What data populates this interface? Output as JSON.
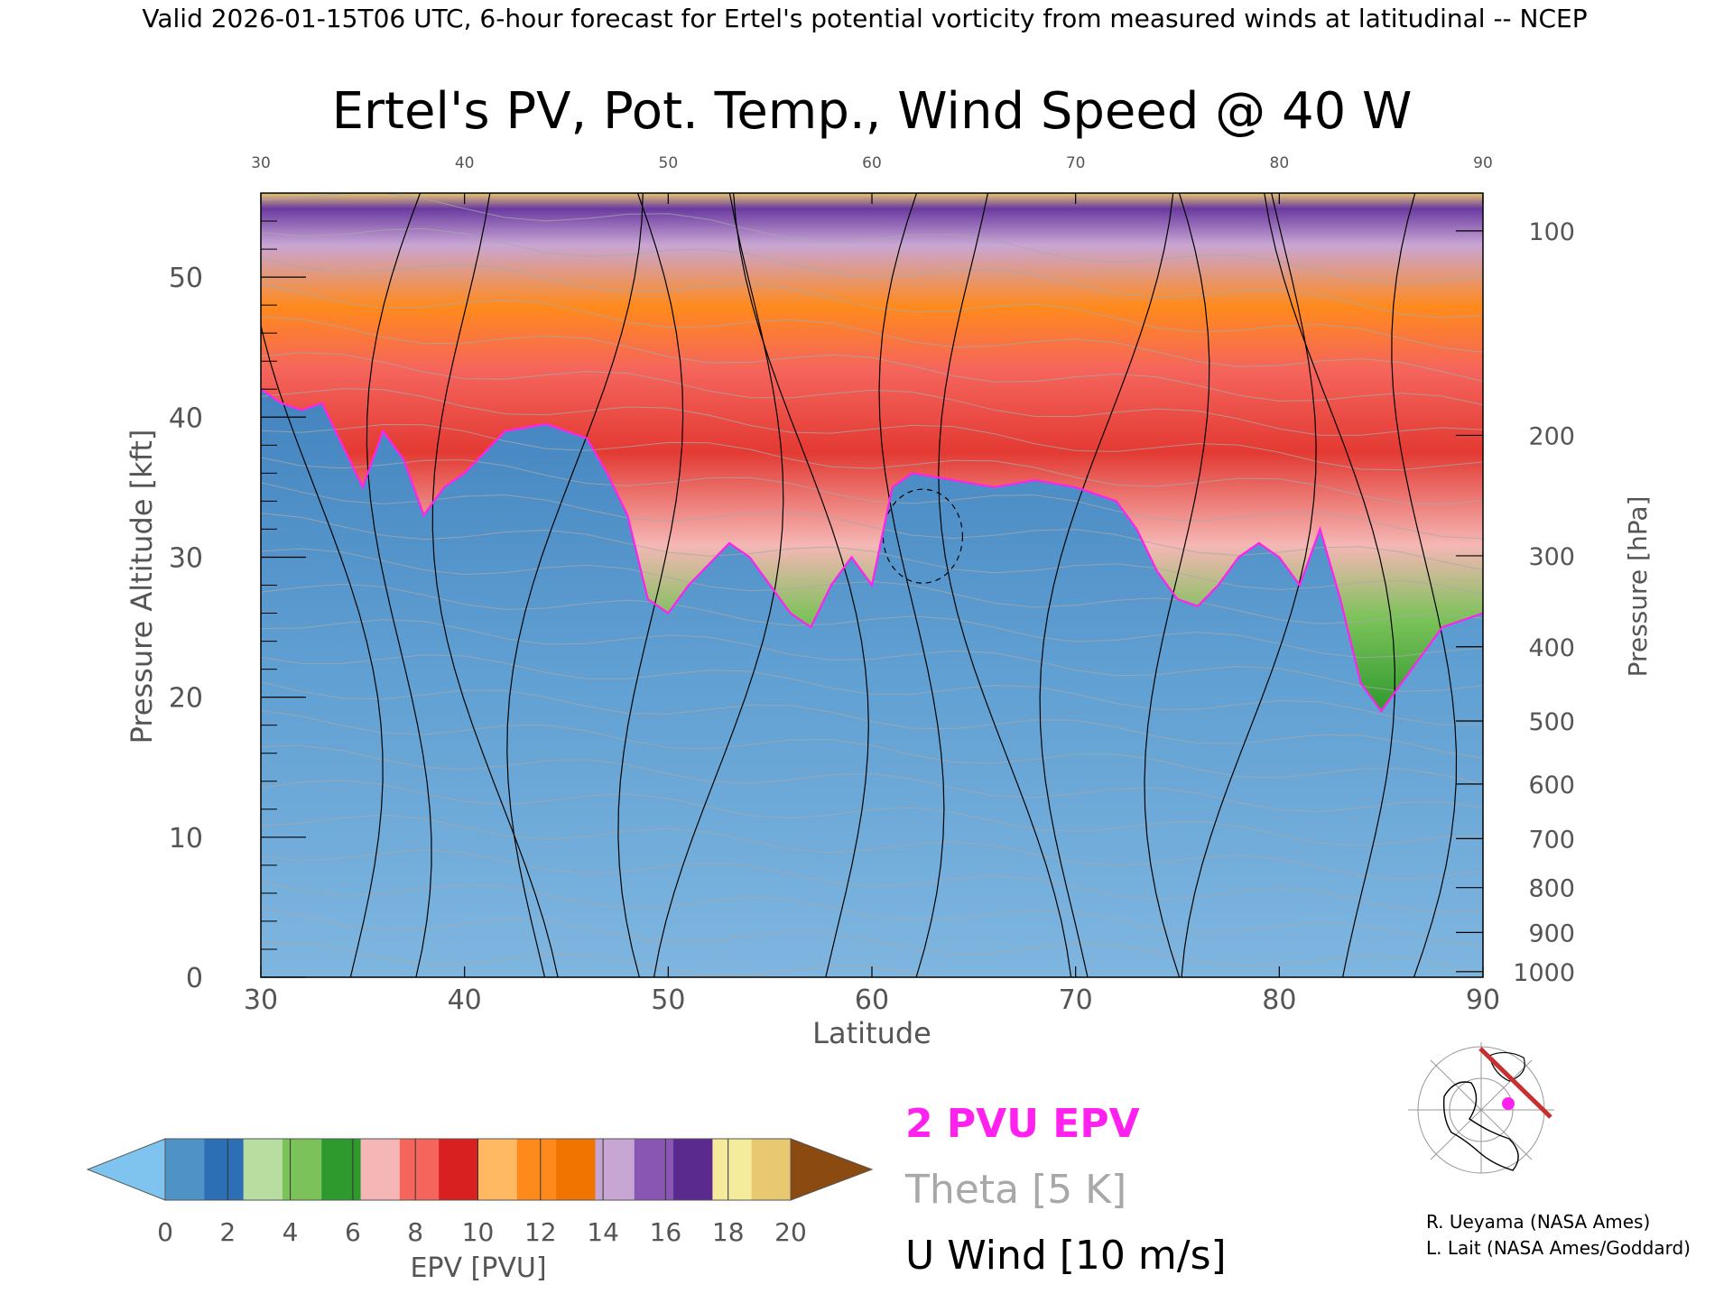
{
  "header": "Valid 2026-01-15T06 UTC, 6-hour forecast for Ertel's potential vorticity from measured winds at latitudinal -- NCEP",
  "chart_data": {
    "type": "heatmap",
    "title": "Ertel's PV, Pot. Temp., Wind Speed @ 40 W",
    "xlabel": "Latitude",
    "ylabel": "Pressure Altitude [kft]",
    "y2label": "Pressure [hPa]",
    "xlim": [
      30,
      90
    ],
    "ylim": [
      0,
      56
    ],
    "x_ticks": [
      30,
      40,
      50,
      60,
      70,
      80,
      90
    ],
    "y_ticks": [
      0,
      10,
      20,
      30,
      40,
      50
    ],
    "pressure_ticks": [
      {
        "label": "100",
        "kft": 53.3
      },
      {
        "label": "200",
        "kft": 38.7
      },
      {
        "label": "300",
        "kft": 30.1
      },
      {
        "label": "400",
        "kft": 23.6
      },
      {
        "label": "500",
        "kft": 18.3
      },
      {
        "label": "600",
        "kft": 13.8
      },
      {
        "label": "700",
        "kft": 9.9
      },
      {
        "label": "800",
        "kft": 6.4
      },
      {
        "label": "900",
        "kft": 3.2
      },
      {
        "label": "1000",
        "kft": 0.4
      }
    ],
    "tropopause_2pvu_kft": [
      [
        30,
        42
      ],
      [
        31,
        41
      ],
      [
        32,
        40.5
      ],
      [
        33,
        41
      ],
      [
        34,
        38
      ],
      [
        35,
        35
      ],
      [
        36,
        39
      ],
      [
        37,
        37
      ],
      [
        38,
        33
      ],
      [
        39,
        35
      ],
      [
        40,
        36
      ],
      [
        42,
        39
      ],
      [
        44,
        39.5
      ],
      [
        46,
        38.5
      ],
      [
        47,
        36
      ],
      [
        48,
        33
      ],
      [
        49,
        27
      ],
      [
        50,
        26
      ],
      [
        51,
        28
      ],
      [
        53,
        31
      ],
      [
        54,
        30
      ],
      [
        55,
        28
      ],
      [
        56,
        26
      ],
      [
        57,
        25
      ],
      [
        58,
        28
      ],
      [
        59,
        30
      ],
      [
        60,
        28
      ],
      [
        61,
        35
      ],
      [
        62,
        36
      ],
      [
        64,
        35.5
      ],
      [
        66,
        35
      ],
      [
        68,
        35.5
      ],
      [
        70,
        35
      ],
      [
        72,
        34
      ],
      [
        73,
        32
      ],
      [
        74,
        29
      ],
      [
        75,
        27
      ],
      [
        76,
        26.5
      ],
      [
        77,
        28
      ],
      [
        78,
        30
      ],
      [
        79,
        31
      ],
      [
        80,
        30
      ],
      [
        81,
        28
      ],
      [
        82,
        32
      ],
      [
        83,
        27
      ],
      [
        84,
        21
      ],
      [
        85,
        19
      ],
      [
        86,
        21
      ],
      [
        87,
        23
      ],
      [
        88,
        25
      ],
      [
        90,
        26
      ]
    ],
    "epv_colorbar": {
      "label": "EPV [PVU]",
      "ticks": [
        0,
        2,
        4,
        6,
        8,
        10,
        12,
        14,
        16,
        18,
        20
      ],
      "colors": [
        "#7fc3ef",
        "#4f93c6",
        "#2d6fb4",
        "#b7dea0",
        "#7cc25a",
        "#2e9a2e",
        "#f5b7b5",
        "#f5655c",
        "#d92020",
        "#ffb962",
        "#ff8a1c",
        "#f27400",
        "#c8a6d4",
        "#8a56b4",
        "#5a2a8e",
        "#f4ec9c",
        "#e8c870",
        "#8a4a10"
      ]
    },
    "u_wind_contours": [
      "-10",
      "0",
      "10",
      "20",
      "30"
    ]
  },
  "legend": {
    "pv": "2 PVU EPV",
    "theta": "Theta [5 K]",
    "wind": "U Wind [10 m/s]",
    "pv_color": "#ff22ee",
    "theta_color": "#a8a8a8",
    "wind_color": "#000000"
  },
  "credits": [
    "R. Ueyama (NASA Ames)",
    "L. Lait (NASA Ames/Goddard)"
  ]
}
